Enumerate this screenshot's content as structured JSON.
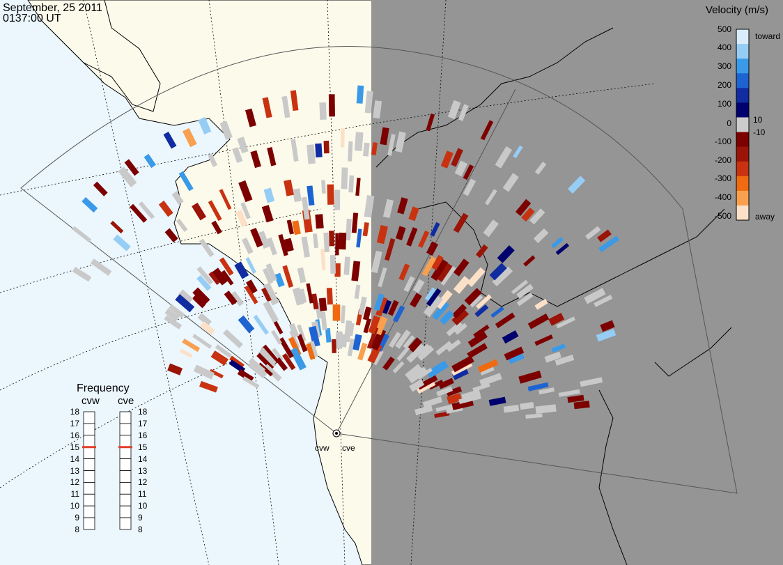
{
  "header": {
    "date": "September, 25 2011",
    "time": "0137:00 UT"
  },
  "velocity_scale": {
    "title": "Velocity (m/s)",
    "ticks": [
      "500",
      "400",
      "300",
      "200",
      "100",
      "10",
      "0",
      "-10",
      "-100",
      "-200",
      "-300",
      "-400",
      "-500"
    ],
    "toward_label": "toward",
    "away_label": "away",
    "colors": [
      "#fde0c8",
      "#f8a050",
      "#ef6a10",
      "#c83210",
      "#9a1408",
      "#7c0000",
      "#cccccc",
      "#00006e",
      "#102ca0",
      "#1e63d2",
      "#3a9ae8",
      "#96cdf5",
      "#d8ecfb"
    ]
  },
  "frequency": {
    "title": "Frequency",
    "radars": [
      "cvw",
      "cve"
    ],
    "scale_mhz": [
      "18",
      "17",
      "16",
      "15",
      "14",
      "13",
      "12",
      "11",
      "10",
      "9",
      "8"
    ],
    "current_mhz": {
      "cvw": 15,
      "cve": 15
    },
    "marker_color": "#e0402a"
  },
  "sites": {
    "west": "cvw",
    "east": "cve"
  },
  "colors": {
    "ocean": "#ebf6fd",
    "land": "#fbfaeb",
    "night": "#959595",
    "ground_scatter": "#c9c9c9"
  }
}
